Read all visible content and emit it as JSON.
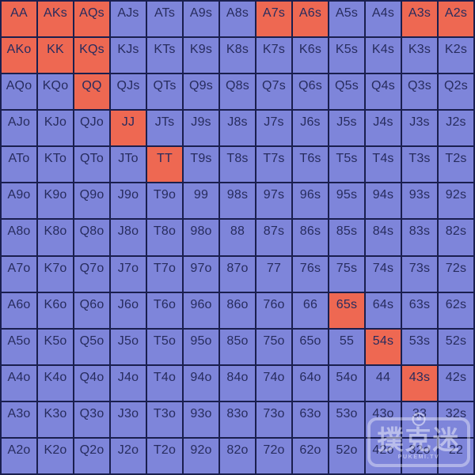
{
  "chart_data": {
    "type": "heatmap",
    "title": "",
    "rank_order": [
      "A",
      "K",
      "Q",
      "J",
      "T",
      "9",
      "8",
      "7",
      "6",
      "5",
      "4",
      "3",
      "2"
    ],
    "rows": [
      [
        "AA",
        "AKs",
        "AQs",
        "AJs",
        "ATs",
        "A9s",
        "A8s",
        "A7s",
        "A6s",
        "A5s",
        "A4s",
        "A3s",
        "A2s"
      ],
      [
        "AKo",
        "KK",
        "KQs",
        "KJs",
        "KTs",
        "K9s",
        "K8s",
        "K7s",
        "K6s",
        "K5s",
        "K4s",
        "K3s",
        "K2s"
      ],
      [
        "AQo",
        "KQo",
        "QQ",
        "QJs",
        "QTs",
        "Q9s",
        "Q8s",
        "Q7s",
        "Q6s",
        "Q5s",
        "Q4s",
        "Q3s",
        "Q2s"
      ],
      [
        "AJo",
        "KJo",
        "QJo",
        "JJ",
        "JTs",
        "J9s",
        "J8s",
        "J7s",
        "J6s",
        "J5s",
        "J4s",
        "J3s",
        "J2s"
      ],
      [
        "ATo",
        "KTo",
        "QTo",
        "JTo",
        "TT",
        "T9s",
        "T8s",
        "T7s",
        "T6s",
        "T5s",
        "T4s",
        "T3s",
        "T2s"
      ],
      [
        "A9o",
        "K9o",
        "Q9o",
        "J9o",
        "T9o",
        "99",
        "98s",
        "97s",
        "96s",
        "95s",
        "94s",
        "93s",
        "92s"
      ],
      [
        "A8o",
        "K8o",
        "Q8o",
        "J8o",
        "T8o",
        "98o",
        "88",
        "87s",
        "86s",
        "85s",
        "84s",
        "83s",
        "82s"
      ],
      [
        "A7o",
        "K7o",
        "Q7o",
        "J7o",
        "T7o",
        "97o",
        "87o",
        "77",
        "76s",
        "75s",
        "74s",
        "73s",
        "72s"
      ],
      [
        "A6o",
        "K6o",
        "Q6o",
        "J6o",
        "T6o",
        "96o",
        "86o",
        "76o",
        "66",
        "65s",
        "64s",
        "63s",
        "62s"
      ],
      [
        "A5o",
        "K5o",
        "Q5o",
        "J5o",
        "T5o",
        "95o",
        "85o",
        "75o",
        "65o",
        "55",
        "54s",
        "53s",
        "52s"
      ],
      [
        "A4o",
        "K4o",
        "Q4o",
        "J4o",
        "T4o",
        "94o",
        "84o",
        "74o",
        "64o",
        "54o",
        "44",
        "43s",
        "42s"
      ],
      [
        "A3o",
        "K3o",
        "Q3o",
        "J3o",
        "T3o",
        "93o",
        "83o",
        "73o",
        "63o",
        "53o",
        "43o",
        "33",
        "32s"
      ],
      [
        "A2o",
        "K2o",
        "Q2o",
        "J2o",
        "T2o",
        "92o",
        "82o",
        "72o",
        "62o",
        "52o",
        "42o",
        "32o",
        "22"
      ]
    ],
    "highlighted_hands": [
      "AA",
      "AKs",
      "AQs",
      "A7s",
      "A6s",
      "A3s",
      "A2s",
      "AKo",
      "KK",
      "KQs",
      "QQ",
      "JJ",
      "TT",
      "65s",
      "54s",
      "43s"
    ],
    "colors": {
      "cell_default": "#7e85da",
      "cell_highlighted": "#ee6852",
      "grid_line": "#1a1f4e",
      "cell_text": "#272c5e"
    }
  },
  "watermark": {
    "brand_text": "撲克迷",
    "site_text": "PUKEMI.TV",
    "badge_glyph": "M"
  }
}
